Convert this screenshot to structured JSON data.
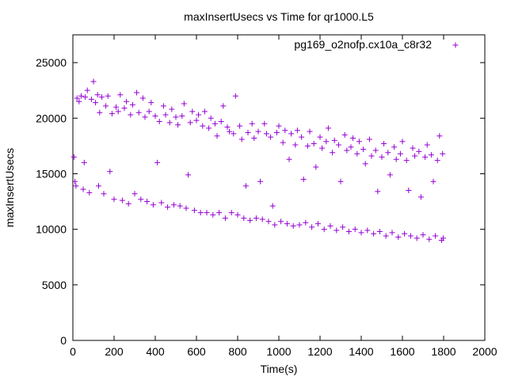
{
  "chart_data": {
    "type": "scatter",
    "title": "maxInsertUsecs vs Time for qr1000.L5",
    "xlabel": "Time(s)",
    "ylabel": "maxInsertUsecs",
    "xlim": [
      0,
      2000
    ],
    "ylim": [
      0,
      27500
    ],
    "x_ticks": [
      "0",
      "200",
      "400",
      "600",
      "800",
      "1000",
      "1200",
      "1400",
      "1600",
      "1800",
      "2000"
    ],
    "y_ticks": [
      "0",
      "5000",
      "10000",
      "15000",
      "20000",
      "25000"
    ],
    "grid": false,
    "legend_position": "top-right",
    "marker": "plus",
    "series": [
      {
        "name": "pg169_o2nofp.cx10a_c8r32",
        "color": "#9400d3",
        "points": [
          [
            5,
            16500
          ],
          [
            10,
            14300
          ],
          [
            15,
            13900
          ],
          [
            20,
            21800
          ],
          [
            30,
            21500
          ],
          [
            40,
            22000
          ],
          [
            50,
            13600
          ],
          [
            55,
            16000
          ],
          [
            60,
            21900
          ],
          [
            70,
            22500
          ],
          [
            80,
            13300
          ],
          [
            90,
            21700
          ],
          [
            100,
            23300
          ],
          [
            110,
            21400
          ],
          [
            120,
            22100
          ],
          [
            125,
            13900
          ],
          [
            130,
            20500
          ],
          [
            140,
            21900
          ],
          [
            150,
            13200
          ],
          [
            160,
            21100
          ],
          [
            170,
            22000
          ],
          [
            180,
            15200
          ],
          [
            190,
            20400
          ],
          [
            200,
            12700
          ],
          [
            210,
            21000
          ],
          [
            220,
            20600
          ],
          [
            230,
            22100
          ],
          [
            240,
            12600
          ],
          [
            250,
            20900
          ],
          [
            260,
            21500
          ],
          [
            270,
            12300
          ],
          [
            280,
            20300
          ],
          [
            290,
            21200
          ],
          [
            300,
            13200
          ],
          [
            310,
            22300
          ],
          [
            320,
            20500
          ],
          [
            330,
            12700
          ],
          [
            340,
            21800
          ],
          [
            350,
            20100
          ],
          [
            360,
            12500
          ],
          [
            370,
            20600
          ],
          [
            380,
            21400
          ],
          [
            390,
            12200
          ],
          [
            400,
            20200
          ],
          [
            410,
            16000
          ],
          [
            420,
            19700
          ],
          [
            430,
            12400
          ],
          [
            440,
            21100
          ],
          [
            450,
            20300
          ],
          [
            460,
            12000
          ],
          [
            470,
            19600
          ],
          [
            480,
            20800
          ],
          [
            490,
            12200
          ],
          [
            500,
            20100
          ],
          [
            510,
            19400
          ],
          [
            520,
            12100
          ],
          [
            530,
            20200
          ],
          [
            540,
            21300
          ],
          [
            550,
            11900
          ],
          [
            560,
            14900
          ],
          [
            570,
            19600
          ],
          [
            580,
            20600
          ],
          [
            590,
            11700
          ],
          [
            600,
            19800
          ],
          [
            610,
            20300
          ],
          [
            620,
            11500
          ],
          [
            630,
            19300
          ],
          [
            640,
            20600
          ],
          [
            650,
            11500
          ],
          [
            660,
            19100
          ],
          [
            670,
            20000
          ],
          [
            680,
            11300
          ],
          [
            690,
            19500
          ],
          [
            700,
            18400
          ],
          [
            710,
            11500
          ],
          [
            720,
            19700
          ],
          [
            730,
            21100
          ],
          [
            740,
            11000
          ],
          [
            750,
            19200
          ],
          [
            760,
            18800
          ],
          [
            770,
            11500
          ],
          [
            780,
            18600
          ],
          [
            790,
            22000
          ],
          [
            800,
            11300
          ],
          [
            810,
            19300
          ],
          [
            820,
            18100
          ],
          [
            830,
            11000
          ],
          [
            840,
            13900
          ],
          [
            850,
            18700
          ],
          [
            860,
            10800
          ],
          [
            870,
            19500
          ],
          [
            880,
            18200
          ],
          [
            890,
            11000
          ],
          [
            900,
            18800
          ],
          [
            910,
            14300
          ],
          [
            920,
            10900
          ],
          [
            930,
            19500
          ],
          [
            940,
            18600
          ],
          [
            950,
            10700
          ],
          [
            960,
            18300
          ],
          [
            970,
            12100
          ],
          [
            980,
            10400
          ],
          [
            990,
            18700
          ],
          [
            1000,
            19300
          ],
          [
            1010,
            10700
          ],
          [
            1020,
            17800
          ],
          [
            1030,
            18900
          ],
          [
            1040,
            10500
          ],
          [
            1050,
            16300
          ],
          [
            1060,
            18600
          ],
          [
            1070,
            10300
          ],
          [
            1080,
            17600
          ],
          [
            1090,
            18900
          ],
          [
            1100,
            10400
          ],
          [
            1110,
            18300
          ],
          [
            1120,
            14500
          ],
          [
            1130,
            10600
          ],
          [
            1140,
            17500
          ],
          [
            1150,
            18800
          ],
          [
            1160,
            10200
          ],
          [
            1170,
            17700
          ],
          [
            1180,
            15600
          ],
          [
            1190,
            10500
          ],
          [
            1200,
            18300
          ],
          [
            1210,
            17300
          ],
          [
            1220,
            10000
          ],
          [
            1230,
            17900
          ],
          [
            1240,
            19100
          ],
          [
            1250,
            10300
          ],
          [
            1260,
            16900
          ],
          [
            1270,
            18000
          ],
          [
            1280,
            9900
          ],
          [
            1290,
            17600
          ],
          [
            1300,
            14300
          ],
          [
            1310,
            10200
          ],
          [
            1320,
            18500
          ],
          [
            1330,
            17100
          ],
          [
            1340,
            9800
          ],
          [
            1350,
            17400
          ],
          [
            1360,
            18200
          ],
          [
            1370,
            10000
          ],
          [
            1380,
            16800
          ],
          [
            1390,
            17900
          ],
          [
            1400,
            9700
          ],
          [
            1410,
            17200
          ],
          [
            1420,
            15900
          ],
          [
            1430,
            9900
          ],
          [
            1440,
            18100
          ],
          [
            1450,
            16600
          ],
          [
            1460,
            9600
          ],
          [
            1470,
            17100
          ],
          [
            1480,
            13400
          ],
          [
            1490,
            9800
          ],
          [
            1500,
            16500
          ],
          [
            1510,
            17700
          ],
          [
            1520,
            9400
          ],
          [
            1530,
            16900
          ],
          [
            1540,
            14900
          ],
          [
            1550,
            9700
          ],
          [
            1560,
            17400
          ],
          [
            1570,
            16300
          ],
          [
            1580,
            9300
          ],
          [
            1590,
            16800
          ],
          [
            1600,
            17900
          ],
          [
            1610,
            9600
          ],
          [
            1620,
            16200
          ],
          [
            1630,
            13500
          ],
          [
            1640,
            9400
          ],
          [
            1650,
            17300
          ],
          [
            1660,
            16600
          ],
          [
            1670,
            9200
          ],
          [
            1680,
            17000
          ],
          [
            1690,
            12900
          ],
          [
            1700,
            9500
          ],
          [
            1710,
            16500
          ],
          [
            1720,
            17600
          ],
          [
            1730,
            9100
          ],
          [
            1740,
            16700
          ],
          [
            1750,
            14300
          ],
          [
            1760,
            9400
          ],
          [
            1770,
            16200
          ],
          [
            1780,
            18400
          ],
          [
            1790,
            9000
          ],
          [
            1795,
            16800
          ],
          [
            1798,
            9200
          ]
        ]
      }
    ]
  }
}
